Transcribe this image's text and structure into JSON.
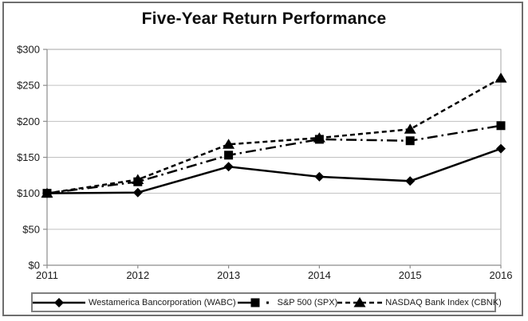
{
  "title": "Five-Year Return Performance",
  "chart_data": {
    "type": "line",
    "title": "Five-Year Return Performance",
    "categories": [
      "2011",
      "2012",
      "2013",
      "2014",
      "2015",
      "2016"
    ],
    "series": [
      {
        "name": "Westamerica Bancorporation (WABC)",
        "marker": "diamond",
        "line_style": "solid",
        "values": [
          100,
          101,
          137,
          123,
          117,
          162
        ]
      },
      {
        "name": "S&P 500 (SPX)",
        "marker": "square",
        "line_style": "dash-dot",
        "values": [
          100,
          116,
          153,
          175,
          173,
          194
        ]
      },
      {
        "name": "NASDAQ Bank Index (CBNK)",
        "marker": "triangle",
        "line_style": "dashed",
        "values": [
          100,
          119,
          168,
          177,
          189,
          260
        ]
      }
    ],
    "xlabel": "",
    "ylabel": "",
    "ylim": [
      0,
      300
    ],
    "y_ticks": [
      0,
      50,
      100,
      150,
      200,
      250,
      300
    ],
    "y_tick_labels": [
      "$0",
      "$50",
      "$100",
      "$150",
      "$200",
      "$250",
      "$300"
    ],
    "grid": true,
    "legend_position": "bottom"
  },
  "colors": {
    "series": "#000000",
    "gridline": "#c0c0c0",
    "axis": "#8c8c8c",
    "plot_border": "#a6a6a6",
    "frame_border": "#6e6e6e",
    "legend_border": "#7f7f7f",
    "text": "#1a1a1a"
  }
}
